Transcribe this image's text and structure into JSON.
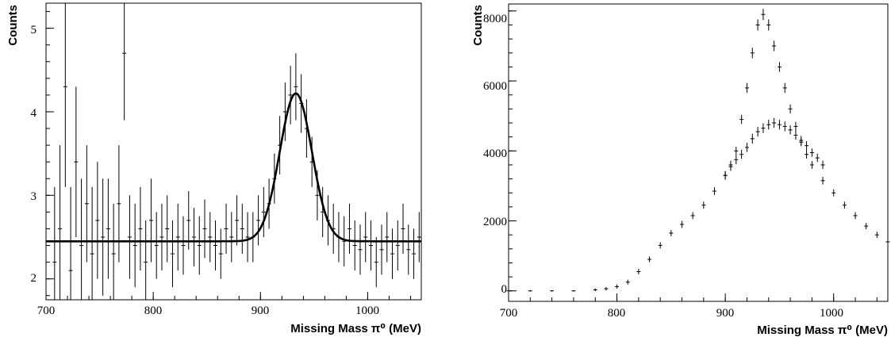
{
  "chart_data": [
    {
      "type": "scatter",
      "title": "",
      "xlabel": "Missing Mass π⁰ (MeV)",
      "ylabel": "Counts",
      "xlim": [
        700,
        1050
      ],
      "ylim": [
        1.75,
        5.3
      ],
      "xticks": [
        "700",
        "800",
        "900",
        "1000"
      ],
      "yticks": [
        "2",
        "3",
        "4",
        "5"
      ],
      "grid": false,
      "legend": "none",
      "fit": {
        "model": "gaussian + constant",
        "baseline": 2.45,
        "amplitude": 1.77,
        "mean": 933,
        "sigma": 15,
        "x": [
          700,
          880,
          895,
          905,
          915,
          925,
          933,
          940,
          950,
          960,
          970,
          985,
          1050
        ],
        "y": [
          2.45,
          2.46,
          2.53,
          2.69,
          3.02,
          3.85,
          4.22,
          4.05,
          3.3,
          2.72,
          2.5,
          2.45,
          2.45
        ]
      },
      "series": [
        {
          "x": [
            708,
            713,
            718,
            723,
            728,
            733,
            738,
            743,
            748,
            753,
            758,
            763,
            768,
            773,
            778,
            783,
            788,
            793,
            798,
            803,
            808,
            813,
            818,
            823,
            828,
            833,
            838,
            843,
            848,
            853,
            858,
            863,
            868,
            873,
            878,
            883,
            888,
            893,
            898,
            903,
            908,
            913,
            918,
            923,
            928,
            933,
            938,
            943,
            948,
            953,
            958,
            963,
            968,
            973,
            978,
            983,
            988,
            993,
            998,
            1003,
            1008,
            1013,
            1018,
            1023,
            1028,
            1033,
            1038,
            1043,
            1048
          ],
          "y": [
            2.2,
            2.6,
            4.3,
            2.1,
            3.4,
            2.4,
            2.9,
            2.3,
            2.7,
            2.5,
            2.6,
            2.3,
            2.9,
            4.7,
            2.5,
            2.4,
            2.6,
            2.2,
            2.7,
            2.4,
            2.5,
            2.6,
            2.3,
            2.5,
            2.4,
            2.7,
            2.5,
            2.4,
            2.6,
            2.5,
            2.4,
            2.3,
            2.6,
            2.5,
            2.7,
            2.6,
            2.5,
            2.5,
            2.7,
            2.8,
            2.9,
            3.2,
            3.6,
            4.0,
            4.2,
            4.3,
            4.1,
            3.8,
            3.4,
            3.0,
            2.8,
            2.7,
            2.6,
            2.5,
            2.45,
            2.6,
            2.4,
            2.35,
            2.5,
            2.4,
            2.2,
            2.35,
            2.5,
            2.3,
            2.4,
            2.6,
            2.35,
            2.3,
            2.5
          ],
          "err": [
            0.9,
            1.0,
            1.2,
            1.0,
            0.9,
            0.8,
            0.7,
            0.8,
            0.7,
            0.7,
            0.6,
            0.6,
            0.7,
            0.8,
            0.5,
            0.5,
            0.5,
            0.5,
            0.5,
            0.4,
            0.4,
            0.4,
            0.4,
            0.4,
            0.35,
            0.35,
            0.35,
            0.35,
            0.35,
            0.3,
            0.3,
            0.3,
            0.3,
            0.3,
            0.3,
            0.3,
            0.3,
            0.3,
            0.3,
            0.3,
            0.3,
            0.3,
            0.35,
            0.35,
            0.35,
            0.4,
            0.35,
            0.35,
            0.3,
            0.3,
            0.3,
            0.3,
            0.3,
            0.3,
            0.3,
            0.3,
            0.3,
            0.3,
            0.3,
            0.3,
            0.3,
            0.3,
            0.3,
            0.3,
            0.3,
            0.3,
            0.3,
            0.3,
            0.3
          ]
        }
      ]
    },
    {
      "type": "scatter",
      "title": "",
      "xlabel": "Missing Mass π⁰ (MeV)",
      "ylabel": "Counts",
      "xlim": [
        700,
        1050
      ],
      "ylim": [
        -300,
        8200
      ],
      "xticks": [
        "700",
        "800",
        "900",
        "1000"
      ],
      "yticks": [
        "0",
        "2000",
        "4000",
        "6000",
        "8000"
      ],
      "grid": false,
      "legend": "none",
      "series": [
        {
          "x": [
            700,
            720,
            740,
            760,
            780,
            790,
            800,
            810,
            820,
            830,
            840,
            850,
            860,
            870,
            880,
            890,
            900,
            905,
            910,
            915,
            920,
            925,
            930,
            935,
            940,
            945,
            950,
            955,
            960,
            965,
            970,
            975,
            980,
            990,
            1000,
            1010,
            1020,
            1030,
            1040,
            1050
          ],
          "y": [
            0,
            0,
            0,
            0,
            30,
            60,
            120,
            250,
            550,
            900,
            1300,
            1650,
            1900,
            2150,
            2450,
            2850,
            3300,
            3600,
            4000,
            4900,
            5800,
            6800,
            7600,
            7900,
            7600,
            7000,
            6400,
            5800,
            5200,
            4700,
            4250,
            3900,
            3600,
            3150,
            2800,
            2450,
            2150,
            1850,
            1600,
            1400
          ],
          "err": [
            20,
            20,
            20,
            20,
            40,
            50,
            60,
            70,
            80,
            80,
            90,
            90,
            100,
            100,
            100,
            110,
            120,
            120,
            120,
            130,
            140,
            150,
            160,
            160,
            160,
            150,
            140,
            140,
            130,
            130,
            120,
            120,
            110,
            110,
            100,
            100,
            100,
            90,
            90,
            90
          ]
        },
        {
          "x": [
            900,
            905,
            910,
            915,
            920,
            925,
            930,
            935,
            940,
            945,
            950,
            955,
            960,
            965,
            970,
            975,
            980,
            985,
            990
          ],
          "y": [
            3300,
            3550,
            3750,
            3900,
            4100,
            4350,
            4550,
            4650,
            4750,
            4800,
            4750,
            4700,
            4600,
            4450,
            4300,
            4150,
            3950,
            3800,
            3600
          ],
          "err": [
            120,
            120,
            130,
            130,
            130,
            140,
            140,
            140,
            140,
            140,
            140,
            140,
            130,
            130,
            130,
            130,
            120,
            120,
            120
          ]
        }
      ]
    }
  ]
}
